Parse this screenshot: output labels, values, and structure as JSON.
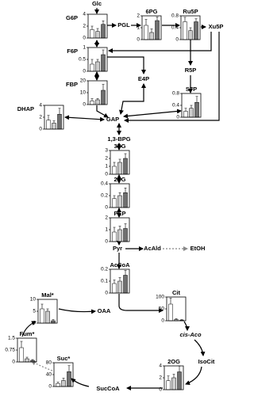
{
  "bar_colors": [
    "#ffffff",
    "#cccccc",
    "#707070"
  ],
  "charts": [
    {
      "label": "G6P",
      "yticks": [
        0,
        2,
        4
      ],
      "ylim": [
        0,
        4
      ],
      "values": [
        1.4,
        1.1,
        2.3
      ],
      "errors": [
        0.6,
        0.5,
        0.6
      ]
    },
    {
      "label": "6PG",
      "yticks": [
        0,
        1,
        2
      ],
      "ylim": [
        0,
        2
      ],
      "values": [
        1.2,
        0.6,
        1.6
      ],
      "errors": [
        0.5,
        0.3,
        0.3
      ]
    },
    {
      "label": "Ru5P",
      "yticks": [
        0,
        0.4,
        0.8
      ],
      "ylim": [
        0,
        0.8
      ],
      "values": [
        0.6,
        0.3,
        0.6
      ],
      "errors": [
        0.15,
        0.1,
        0.1
      ]
    },
    {
      "label": "F6P",
      "yticks": [
        0,
        0.5,
        1
      ],
      "ylim": [
        0,
        1
      ],
      "values": [
        0.3,
        0.4,
        0.7
      ],
      "errors": [
        0.2,
        0.1,
        0.2
      ]
    },
    {
      "label": "FBP",
      "yticks": [
        0,
        10,
        20
      ],
      "ylim": [
        0,
        20
      ],
      "values": [
        3,
        4,
        12
      ],
      "errors": [
        2,
        1,
        5
      ]
    },
    {
      "label": "DHAP",
      "yticks": [
        0,
        2,
        4
      ],
      "ylim": [
        0,
        4
      ],
      "values": [
        1.5,
        1.0,
        2.5
      ],
      "errors": [
        0.8,
        0.4,
        1.0
      ]
    },
    {
      "label": "S7P",
      "yticks": [
        0,
        0.4,
        0.8
      ],
      "ylim": [
        0,
        0.8
      ],
      "values": [
        0.2,
        0.3,
        0.5
      ],
      "errors": [
        0.1,
        0.1,
        0.2
      ]
    },
    {
      "label": "3PG",
      "yticks": [
        0,
        1,
        2,
        3
      ],
      "ylim": [
        0,
        3
      ],
      "values": [
        1.0,
        1.5,
        2.0
      ],
      "errors": [
        0.5,
        0.4,
        0.6
      ]
    },
    {
      "label": "2PG",
      "yticks": [
        0,
        0.2,
        0.4
      ],
      "ylim": [
        0,
        0.4
      ],
      "values": [
        0.15,
        0.2,
        0.25
      ],
      "errors": [
        0.05,
        0.05,
        0.08
      ]
    },
    {
      "label": "PEP",
      "yticks": [
        0,
        1,
        2
      ],
      "ylim": [
        0,
        2
      ],
      "values": [
        0.8,
        1.0,
        1.1
      ],
      "errors": [
        0.4,
        0.3,
        0.4
      ]
    },
    {
      "label": "AcCoA",
      "yticks": [
        0,
        0.1,
        0.2
      ],
      "ylim": [
        0,
        0.2
      ],
      "values": [
        0.08,
        0.1,
        0.15
      ],
      "errors": [
        0.03,
        0.03,
        0.04
      ]
    },
    {
      "label": "Mal*",
      "yticks": [
        0,
        5,
        10
      ],
      "ylim": [
        0,
        10
      ],
      "values": [
        6,
        5,
        1
      ],
      "errors": [
        2,
        1,
        0.5
      ]
    },
    {
      "label": "Cit",
      "yticks": [
        0,
        50,
        100
      ],
      "ylim": [
        0,
        100
      ],
      "values": [
        70,
        5,
        3
      ],
      "errors": [
        25,
        3,
        2
      ]
    },
    {
      "label": "Fum*",
      "yticks": [
        0,
        0.75,
        1.5
      ],
      "ylim": [
        0,
        1.5
      ],
      "values": [
        0.9,
        0.2,
        0.1
      ],
      "errors": [
        0.4,
        0.1,
        0.05
      ]
    },
    {
      "label": "Suc*",
      "yticks": [
        0,
        40,
        80
      ],
      "ylim": [
        0,
        80
      ],
      "values": [
        10,
        20,
        50
      ],
      "errors": [
        5,
        8,
        20
      ]
    },
    {
      "label": "2OG",
      "yticks": [
        0,
        2,
        4
      ],
      "ylim": [
        0,
        4
      ],
      "values": [
        1.5,
        2,
        3
      ],
      "errors": [
        0.8,
        0.6,
        1.0
      ]
    }
  ],
  "nodes": [
    {
      "label": "Glc"
    },
    {
      "label": "PGL"
    },
    {
      "label": "Xu5P"
    },
    {
      "label": "R5P"
    },
    {
      "label": "E4P"
    },
    {
      "label": "GAP"
    },
    {
      "label": "1,3-BPG"
    },
    {
      "label": "Pyr"
    },
    {
      "label": "AcAld"
    },
    {
      "label": "EtOH"
    },
    {
      "label": "OAA"
    },
    {
      "label": "cis-Aco"
    },
    {
      "label": "IsoCit"
    },
    {
      "label": "SucCoA"
    }
  ]
}
